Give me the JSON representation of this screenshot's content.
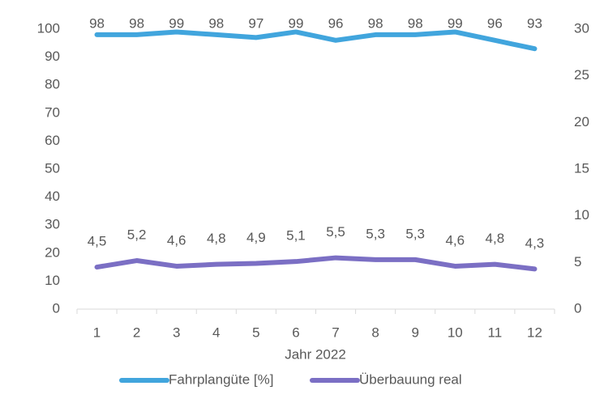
{
  "chart_data": {
    "type": "line",
    "xlabel": "Jahr 2022",
    "categories": [
      "1",
      "2",
      "3",
      "4",
      "5",
      "6",
      "7",
      "8",
      "9",
      "10",
      "11",
      "12"
    ],
    "series": [
      {
        "name": "Fahrplangüte [%]",
        "color": "#41a5dd",
        "values": [
          98,
          98,
          99,
          98,
          97,
          99,
          96,
          98,
          98,
          99,
          96,
          93
        ]
      },
      {
        "name": "Überbauung real",
        "color": "#7b6fc4",
        "axis": "y2",
        "values": [
          4.5,
          5.2,
          4.6,
          4.8,
          4.9,
          5.1,
          5.5,
          5.3,
          5.3,
          4.6,
          4.8,
          4.3
        ],
        "value_labels": [
          "4,5",
          "5,2",
          "4,6",
          "4,8",
          "4,9",
          "5,1",
          "5,5",
          "5,3",
          "5,3",
          "4,6",
          "4,8",
          "4,3"
        ]
      }
    ],
    "ylim": [
      0,
      100
    ],
    "yticks": [
      0,
      10,
      20,
      30,
      40,
      50,
      60,
      70,
      80,
      90,
      100
    ],
    "y2lim": [
      0,
      30
    ],
    "y2ticks": [
      0,
      5,
      10,
      15,
      20,
      25,
      30
    ],
    "grid": false,
    "legend": "bottom"
  }
}
